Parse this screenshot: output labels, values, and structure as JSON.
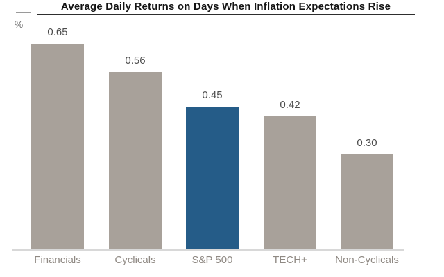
{
  "chart": {
    "unit_label": "%"
  },
  "chart_data": {
    "type": "bar",
    "title": "Average Daily Returns on Days When Inflation Expectations Rise",
    "categories": [
      "Financials",
      "Cyclicals",
      "S&P 500",
      "TECH+",
      "Non-Cyclicals"
    ],
    "values": [
      0.65,
      0.56,
      0.45,
      0.42,
      0.3
    ],
    "value_labels": [
      "0.65",
      "0.56",
      "0.45",
      "0.42",
      "0.30"
    ],
    "xlabel": "",
    "ylabel": "%",
    "ylim": [
      0,
      0.78
    ],
    "grid": false,
    "legend": false,
    "highlight_index": 2,
    "highlight_category": "S&P 500",
    "colors": {
      "bar_default": "#a8a19a",
      "bar_highlight": "#255c88",
      "title_text": "#141414",
      "title_underline": "#2e2e2e",
      "value_text": "#4d4d4d",
      "category_text": "#8f8983",
      "axis_line": "#d8d8d8",
      "unit_text": "#6e6e6e"
    }
  }
}
